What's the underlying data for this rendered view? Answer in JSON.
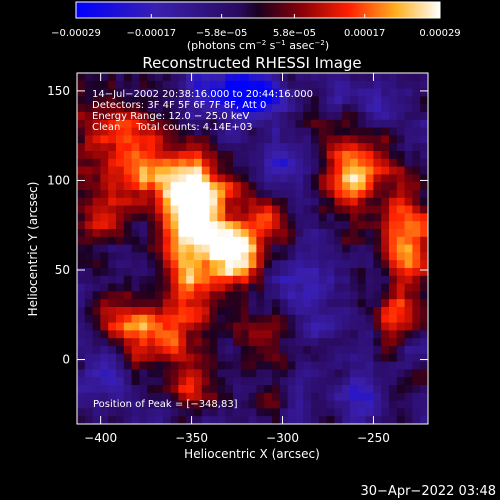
{
  "chart_data": {
    "type": "heatmap",
    "title": "Reconstructed RHESSI Image",
    "xlabel": "Heliocentric X (arcsec)",
    "ylabel": "Heliocentric Y (arcsec)",
    "xlim": [
      -413,
      -220
    ],
    "ylim": [
      -36,
      160
    ],
    "xticks": [
      -400,
      -350,
      -300,
      -250
    ],
    "yticks": [
      0,
      50,
      100,
      150
    ],
    "xtick_labels": [
      "−400",
      "−350",
      "−300",
      "−250"
    ],
    "ytick_labels": [
      "0",
      "50",
      "100",
      "150"
    ],
    "colorbar": {
      "tick_values": [
        -0.00029,
        -0.00017,
        -5.8e-05,
        5.8e-05,
        0.00017,
        0.00029
      ],
      "tick_labels": [
        "−0.00029",
        "−0.00017",
        "−5.8e−05",
        "5.8e−05",
        "0.00017",
        "0.00029"
      ],
      "range": [
        -0.00029,
        0.00029
      ],
      "unit_parts": [
        "(photons cm",
        "−2",
        " s",
        "−1",
        " asec",
        "−2",
        ")"
      ]
    },
    "annotations": [
      "14−Jul−2002 20:38:16.000 to 20:44:16.000",
      "Detectors: 3F 4F 5F 6F 7F 8F, Att 0",
      "Energy Range: 12.0 − 25.0 keV",
      "Clean     Total counts: 4.14E+03"
    ],
    "peak_label": "Position of Peak = [−348,83]",
    "sources": [
      {
        "x": -350,
        "y": 88,
        "sx": 12,
        "sy": 16,
        "amp": 1.0
      },
      {
        "x": -337,
        "y": 65,
        "sx": 14,
        "sy": 22,
        "amp": 0.72
      },
      {
        "x": -323,
        "y": 58,
        "sx": 10,
        "sy": 12,
        "amp": 0.7
      },
      {
        "x": -308,
        "y": 80,
        "sx": 9,
        "sy": 11,
        "amp": 0.5
      },
      {
        "x": -260,
        "y": 104,
        "sx": 12,
        "sy": 15,
        "amp": 0.9
      },
      {
        "x": -232,
        "y": 70,
        "sx": 9,
        "sy": 22,
        "amp": 0.75
      },
      {
        "x": -238,
        "y": 25,
        "sx": 8,
        "sy": 9,
        "amp": 0.55
      },
      {
        "x": -393,
        "y": 122,
        "sx": 14,
        "sy": 14,
        "amp": 0.6
      },
      {
        "x": -372,
        "y": 105,
        "sx": 13,
        "sy": 15,
        "amp": 0.62
      },
      {
        "x": -398,
        "y": 82,
        "sx": 9,
        "sy": 12,
        "amp": 0.45
      },
      {
        "x": -356,
        "y": 36,
        "sx": 10,
        "sy": 26,
        "amp": 0.55
      },
      {
        "x": -373,
        "y": 10,
        "sx": 12,
        "sy": 12,
        "amp": 0.6
      },
      {
        "x": -388,
        "y": 20,
        "sx": 8,
        "sy": 8,
        "amp": 0.48
      },
      {
        "x": -347,
        "y": -15,
        "sx": 8,
        "sy": 8,
        "amp": 0.45
      },
      {
        "x": -312,
        "y": 14,
        "sx": 8,
        "sy": 8,
        "amp": 0.4
      }
    ],
    "cold_spots": [
      {
        "x": -322,
        "y": 148,
        "sx": 18,
        "sy": 10,
        "amp": 1.0
      },
      {
        "x": -300,
        "y": 108,
        "sx": 12,
        "sy": 10,
        "amp": 0.5
      },
      {
        "x": -285,
        "y": 40,
        "sx": 14,
        "sy": 14,
        "amp": 0.4
      },
      {
        "x": -260,
        "y": -20,
        "sx": 12,
        "sy": 12,
        "amp": 0.4
      },
      {
        "x": -400,
        "y": -10,
        "sx": 14,
        "sy": 14,
        "amp": 0.35
      },
      {
        "x": -250,
        "y": 148,
        "sx": 14,
        "sy": 8,
        "amp": 0.4
      }
    ]
  },
  "footer": {
    "timestamp": "30−Apr−2022 03:48"
  }
}
